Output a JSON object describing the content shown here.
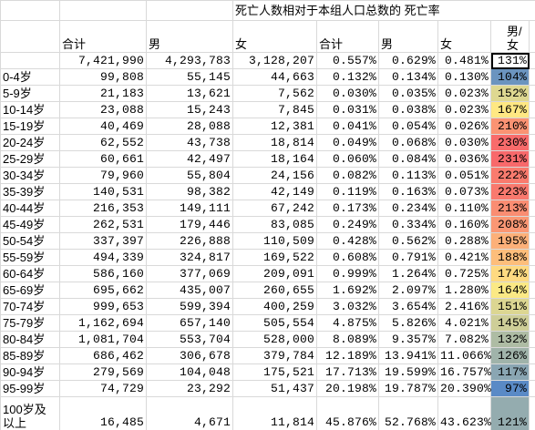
{
  "header": {
    "title": "死亡人数相对于本组人口总数的 死亡率",
    "columns": [
      "",
      "合计",
      "男",
      "女",
      "合计",
      "男",
      "女",
      "男/女"
    ]
  },
  "totals": [
    "",
    "7,421,990",
    "4,293,783",
    "3,128,207",
    "0.557%",
    "0.629%",
    "0.481%",
    "131%"
  ],
  "rows": [
    [
      "0-4岁",
      "99,808",
      "55,145",
      "44,663",
      "0.132%",
      "0.134%",
      "0.130%",
      "104%"
    ],
    [
      "5-9岁",
      "21,183",
      "13,621",
      "7,562",
      "0.030%",
      "0.035%",
      "0.023%",
      "152%"
    ],
    [
      "10-14岁",
      "23,088",
      "15,243",
      "7,845",
      "0.031%",
      "0.038%",
      "0.023%",
      "167%"
    ],
    [
      "15-19岁",
      "40,469",
      "28,088",
      "12,381",
      "0.041%",
      "0.054%",
      "0.026%",
      "210%"
    ],
    [
      "20-24岁",
      "62,552",
      "43,738",
      "18,814",
      "0.049%",
      "0.068%",
      "0.030%",
      "230%"
    ],
    [
      "25-29岁",
      "60,661",
      "42,497",
      "18,164",
      "0.060%",
      "0.084%",
      "0.036%",
      "231%"
    ],
    [
      "30-34岁",
      "79,960",
      "55,804",
      "24,156",
      "0.082%",
      "0.113%",
      "0.051%",
      "222%"
    ],
    [
      "35-39岁",
      "140,531",
      "98,382",
      "42,149",
      "0.119%",
      "0.163%",
      "0.073%",
      "223%"
    ],
    [
      "40-44岁",
      "216,353",
      "149,111",
      "67,242",
      "0.173%",
      "0.234%",
      "0.110%",
      "213%"
    ],
    [
      "45-49岁",
      "262,531",
      "179,446",
      "83,085",
      "0.249%",
      "0.334%",
      "0.160%",
      "208%"
    ],
    [
      "50-54岁",
      "337,397",
      "226,888",
      "110,509",
      "0.428%",
      "0.562%",
      "0.288%",
      "195%"
    ],
    [
      "55-59岁",
      "494,339",
      "324,817",
      "169,522",
      "0.608%",
      "0.791%",
      "0.421%",
      "188%"
    ],
    [
      "60-64岁",
      "586,160",
      "377,069",
      "209,091",
      "0.999%",
      "1.264%",
      "0.725%",
      "174%"
    ],
    [
      "65-69岁",
      "695,662",
      "435,007",
      "260,655",
      "1.692%",
      "2.097%",
      "1.280%",
      "164%"
    ],
    [
      "70-74岁",
      "999,653",
      "599,394",
      "400,259",
      "3.032%",
      "3.654%",
      "2.416%",
      "151%"
    ],
    [
      "75-79岁",
      "1,162,694",
      "657,140",
      "505,554",
      "4.875%",
      "5.826%",
      "4.021%",
      "145%"
    ],
    [
      "80-84岁",
      "1,081,704",
      "553,704",
      "528,000",
      "8.089%",
      "9.357%",
      "7.082%",
      "132%"
    ],
    [
      "85-89岁",
      "686,462",
      "306,678",
      "379,784",
      "12.189%",
      "13.941%",
      "11.066%",
      "126%"
    ],
    [
      "90-94岁",
      "279,569",
      "104,048",
      "175,521",
      "17.713%",
      "19.599%",
      "16.757%",
      "117%"
    ],
    [
      "95-99岁",
      "74,729",
      "23,292",
      "51,437",
      "20.198%",
      "19.787%",
      "20.390%",
      "97%"
    ],
    [
      "100岁及以上",
      "16,485",
      "4,671",
      "11,814",
      "45.876%",
      "52.768%",
      "43.623%",
      "121%"
    ]
  ],
  "color_scale": {
    "min": "#5a8ac6",
    "mid": "#ffeb84",
    "max": "#f8696b"
  }
}
